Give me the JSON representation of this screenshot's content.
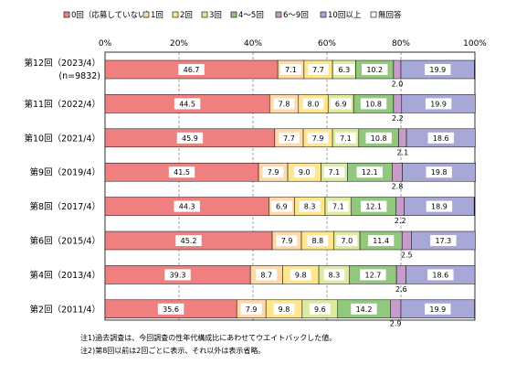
{
  "chart_data": {
    "type": "bar",
    "orientation": "horizontal",
    "stacked": true,
    "percent_axis": true,
    "xlim": [
      0,
      100
    ],
    "x_tick_labels": [
      "0%",
      "20%",
      "40%",
      "60%",
      "80%",
      "100%"
    ],
    "x_ticks": [
      0,
      20,
      40,
      60,
      80,
      100
    ],
    "grid": "vertical dashed",
    "legend_position": "top",
    "categories": [
      "第12回（2023/4）",
      "第11回（2022/4）",
      "第10回（2021/4）",
      "第9回（2019/4）",
      "第8回（2017/4）",
      "第6回（2015/4）",
      "第4回（2013/4）",
      "第2回（2011/4）"
    ],
    "category_sublabels": [
      "(n=9832)",
      "",
      "",
      "",
      "",
      "",
      "",
      ""
    ],
    "series": [
      {
        "name": "0回（応募していない）",
        "color": "#F08080",
        "values": [
          46.7,
          44.5,
          45.9,
          41.5,
          44.3,
          45.2,
          39.3,
          35.6
        ]
      },
      {
        "name": "1回",
        "color": "#FFD9A8",
        "values": [
          7.1,
          7.8,
          7.7,
          7.9,
          6.9,
          7.9,
          8.7,
          7.9
        ]
      },
      {
        "name": "2回",
        "color": "#FFE68C",
        "values": [
          7.7,
          8.0,
          7.9,
          9.0,
          8.3,
          8.8,
          9.8,
          9.8
        ]
      },
      {
        "name": "3回",
        "color": "#DCEBA0",
        "values": [
          6.3,
          6.9,
          7.1,
          7.1,
          7.1,
          7.0,
          8.3,
          9.6
        ]
      },
      {
        "name": "4～5回",
        "color": "#92C77E",
        "values": [
          10.2,
          10.8,
          10.8,
          12.1,
          12.1,
          11.4,
          12.7,
          14.2
        ]
      },
      {
        "name": "6～9回",
        "color": "#C79CCB",
        "values": [
          2.0,
          2.2,
          2.1,
          2.8,
          2.2,
          2.5,
          2.6,
          2.9
        ]
      },
      {
        "name": "10回以上",
        "color": "#A8A8D8",
        "values": [
          19.9,
          19.9,
          18.6,
          19.8,
          18.9,
          17.3,
          18.6,
          19.9
        ]
      },
      {
        "name": "無回答",
        "color": "#FFFFFF",
        "values": [
          0.1,
          0.0,
          0.0,
          0.0,
          0.1,
          0.0,
          0.0,
          0.0
        ]
      }
    ]
  },
  "notes": [
    "注1)過去調査は、今回調査の性年代構成比にあわせてウエイトバックした値。",
    "注2)第8回以前は2回ごとに表示、それ以外は表示省略。"
  ]
}
